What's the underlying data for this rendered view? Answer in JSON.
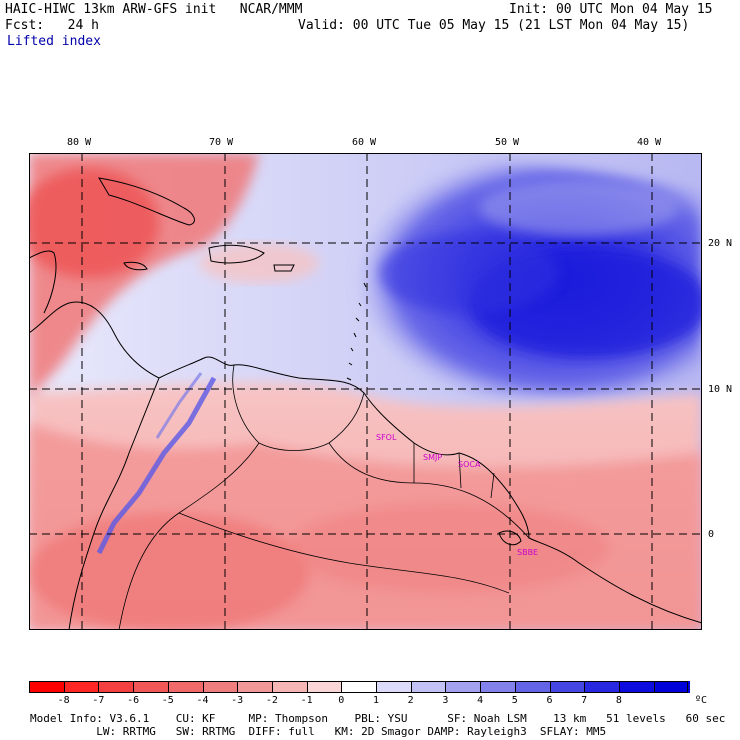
{
  "header": {
    "model_title": "HAIC-HIWC 13km ARW-GFS init   NCAR/MMM",
    "init": "Init: 00 UTC Mon 04 May 15",
    "forecast": "Fcst:   24 h",
    "valid": "Valid: 00 UTC Tue 05 May 15 (21 LST Mon 04 May 15)",
    "field": "Lifted index"
  },
  "map": {
    "lon_labels": [
      "80 W",
      "70 W",
      "60 W",
      "50 W",
      "40 W"
    ],
    "lat_labels": [
      "20 N",
      "10 N",
      "0"
    ],
    "stations": [
      "SFOL",
      "SMJP",
      "SOCA",
      "SBBE"
    ],
    "station_color": "#cc00cc"
  },
  "colorbar": {
    "ticks": [
      "-8",
      "-7",
      "-6",
      "-5",
      "-4",
      "-3",
      "-2",
      "-1",
      "0",
      "1",
      "2",
      "3",
      "4",
      "5",
      "6",
      "7",
      "8"
    ],
    "unit": "ºC",
    "colors": [
      "#ff0000",
      "#ff2626",
      "#f44040",
      "#f25757",
      "#f06a6a",
      "#ef7e7e",
      "#f39898",
      "#f6b6b6",
      "#fad6d6",
      "#ffffff",
      "#dcdcfa",
      "#c2c2f6",
      "#a2a2f0",
      "#8282ea",
      "#6464e6",
      "#4646e2",
      "#2828e0",
      "#0c0cde",
      "#0000d8"
    ]
  },
  "footer": {
    "line1": "Model Info: V3.6.1    CU: KF     MP: Thompson    PBL: YSU      SF: Noah LSM    13 km   51 levels   60 sec",
    "line2": "          LW: RRTMG   SW: RRTMG  DIFF: full   KM: 2D Smagor DAMP: Rayleigh3  SFLAY: MM5"
  }
}
